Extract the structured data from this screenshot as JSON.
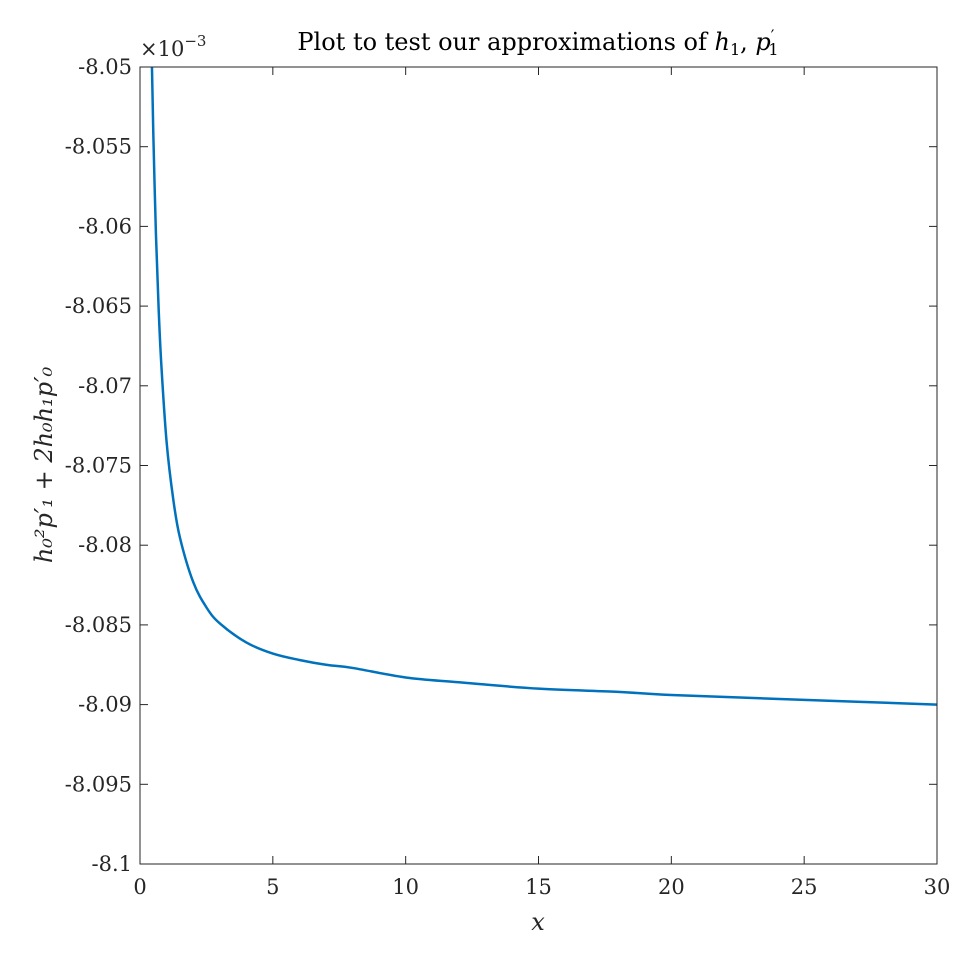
{
  "chart_data": {
    "type": "line",
    "title": "Plot to test our approximations of h₁, p′₁",
    "title_parts": {
      "prefix": "Plot to test our approximations of ",
      "h": "h",
      "h_sub": "1",
      "sep": ", ",
      "p": "p",
      "p_prime": "′",
      "p_sub": "1"
    },
    "xlabel": "x",
    "ylabel": "h₀²p′₁ + 2h₀h₁p′₀",
    "y_exponent_label": "×10",
    "y_exponent_power": "−3",
    "xlim": [
      0,
      30
    ],
    "ylim": [
      -8.1,
      -8.05
    ],
    "y_scale_factor": 0.001,
    "xticks": [
      0,
      5,
      10,
      15,
      20,
      25,
      30
    ],
    "xtick_labels": [
      "0",
      "5",
      "10",
      "15",
      "20",
      "25",
      "30"
    ],
    "yticks": [
      -8.05,
      -8.055,
      -8.06,
      -8.065,
      -8.07,
      -8.075,
      -8.08,
      -8.085,
      -8.09,
      -8.095,
      -8.1
    ],
    "ytick_labels": [
      "-8.05",
      "-8.055",
      "-8.06",
      "-8.065",
      "-8.07",
      "-8.075",
      "-8.08",
      "-8.085",
      "-8.09",
      "-8.095",
      "-8.1"
    ],
    "grid": false,
    "line_color": "#0072BD",
    "series": [
      {
        "x": [
          0.45,
          0.5,
          0.6,
          0.7,
          0.8,
          1.0,
          1.25,
          1.5,
          2.0,
          2.5,
          3.0,
          4.0,
          5.0,
          6.0,
          7.0,
          8.0,
          10.0,
          12.0,
          15.0,
          18.0,
          20.0,
          25.0,
          30.0
        ],
        "y": [
          -8.05,
          -8.0541,
          -8.0605,
          -8.0651,
          -8.0686,
          -8.0735,
          -8.0771,
          -8.0795,
          -8.0823,
          -8.0839,
          -8.0849,
          -8.0861,
          -8.0868,
          -8.0872,
          -8.0875,
          -8.0877,
          -8.0883,
          -8.0886,
          -8.089,
          -8.0892,
          -8.0894,
          -8.0897,
          -8.09
        ]
      }
    ]
  }
}
